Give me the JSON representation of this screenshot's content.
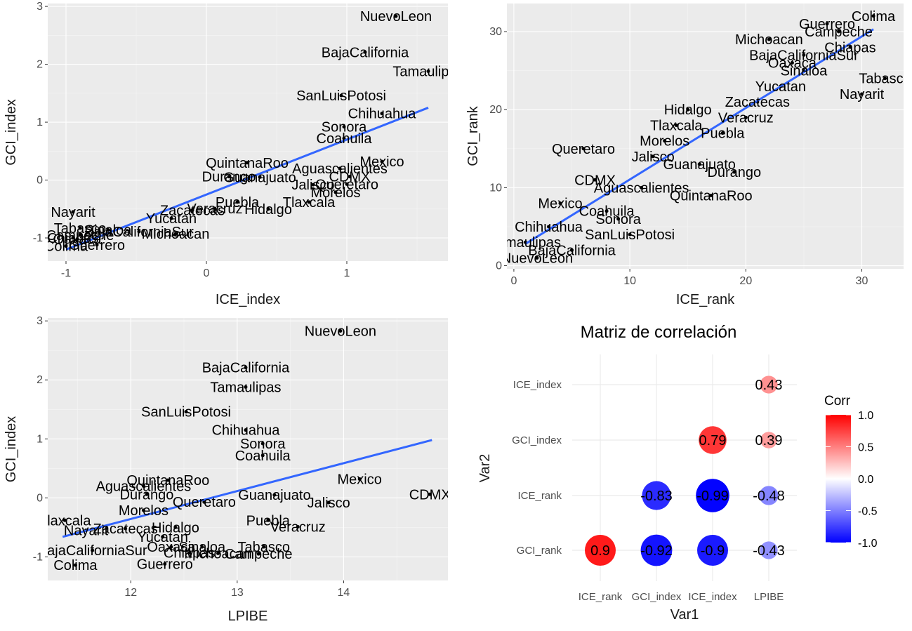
{
  "chart_data": [
    {
      "type": "scatter",
      "xlabel": "ICE_index",
      "ylabel": "GCI_index",
      "xlim": [
        -1.13,
        1.72
      ],
      "ylim": [
        -1.4,
        3.05
      ],
      "xticks": [
        -1,
        0,
        1
      ],
      "yticks": [
        -1,
        0,
        1,
        2,
        3
      ],
      "fit": {
        "x": [
          -1.0,
          1.58
        ],
        "y": [
          -1.2,
          1.25
        ]
      },
      "points": [
        {
          "label": "NuevoLeon",
          "x": 1.35,
          "y": 2.83
        },
        {
          "label": "BajaCalifornia",
          "x": 1.13,
          "y": 2.21
        },
        {
          "label": "Tamaulipas",
          "x": 1.58,
          "y": 1.88
        },
        {
          "label": "SanLuisPotosi",
          "x": 0.96,
          "y": 1.46
        },
        {
          "label": "Chihuahua",
          "x": 1.25,
          "y": 1.15
        },
        {
          "label": "Sonora",
          "x": 0.98,
          "y": 0.92
        },
        {
          "label": "Coahuila",
          "x": 0.98,
          "y": 0.72
        },
        {
          "label": "Mexico",
          "x": 1.25,
          "y": 0.32
        },
        {
          "label": "Aguascalientes",
          "x": 0.95,
          "y": 0.2
        },
        {
          "label": "CDMX",
          "x": 1.02,
          "y": 0.06
        },
        {
          "label": "Jalisco",
          "x": 0.76,
          "y": -0.08
        },
        {
          "label": "Queretaro",
          "x": 1.0,
          "y": -0.07
        },
        {
          "label": "Morelos",
          "x": 0.92,
          "y": -0.21
        },
        {
          "label": "QuintanaRoo",
          "x": 0.29,
          "y": 0.3
        },
        {
          "label": "Durango",
          "x": 0.16,
          "y": 0.06
        },
        {
          "label": "Guanajuato",
          "x": 0.38,
          "y": 0.05
        },
        {
          "label": "Tlaxcala",
          "x": 0.73,
          "y": -0.38
        },
        {
          "label": "Puebla",
          "x": 0.22,
          "y": -0.38
        },
        {
          "label": "Hidalgo",
          "x": 0.44,
          "y": -0.5
        },
        {
          "label": "Zacatecas",
          "x": -0.1,
          "y": -0.52
        },
        {
          "label": "Veracruz",
          "x": 0.06,
          "y": -0.49
        },
        {
          "label": "Yucatan",
          "x": -0.25,
          "y": -0.66
        },
        {
          "label": "Nayarit",
          "x": -0.95,
          "y": -0.55
        },
        {
          "label": "Tabasco",
          "x": -0.9,
          "y": -0.83
        },
        {
          "label": "Sinaloa",
          "x": -0.7,
          "y": -0.86
        },
        {
          "label": "BajaCaliforniaSur",
          "x": -0.48,
          "y": -0.89
        },
        {
          "label": "Michoacan",
          "x": -0.22,
          "y": -0.93
        },
        {
          "label": "Campeche",
          "x": -0.9,
          "y": -0.95
        },
        {
          "label": "Chiapas",
          "x": -0.95,
          "y": -1.0
        },
        {
          "label": "Oaxaca",
          "x": -0.92,
          "y": -1.02
        },
        {
          "label": "Colima",
          "x": -1.0,
          "y": -1.14
        },
        {
          "label": "Guerrero",
          "x": -0.78,
          "y": -1.12
        }
      ]
    },
    {
      "type": "scatter",
      "xlabel": "ICE_rank",
      "ylabel": "GCI_rank",
      "xlim": [
        -0.6,
        33.6
      ],
      "ylim": [
        -0.4,
        33.6
      ],
      "xticks": [
        0,
        10,
        20,
        30
      ],
      "yticks": [
        0,
        10,
        20,
        30
      ],
      "fit": {
        "x": [
          1,
          31
        ],
        "y": [
          2.8,
          30.3
        ]
      },
      "points": [
        {
          "label": "Colima",
          "x": 31,
          "y": 32
        },
        {
          "label": "Guerrero",
          "x": 27,
          "y": 31
        },
        {
          "label": "Campeche",
          "x": 28,
          "y": 30
        },
        {
          "label": "Michoacan",
          "x": 22,
          "y": 29
        },
        {
          "label": "Chiapas",
          "x": 29,
          "y": 28
        },
        {
          "label": "BajaCaliforniaSur",
          "x": 25,
          "y": 27
        },
        {
          "label": "Oaxaca",
          "x": 24,
          "y": 26
        },
        {
          "label": "Sinaloa",
          "x": 25,
          "y": 25
        },
        {
          "label": "Tabasco",
          "x": 32,
          "y": 24
        },
        {
          "label": "Yucatan",
          "x": 23,
          "y": 23
        },
        {
          "label": "Nayarit",
          "x": 30,
          "y": 22
        },
        {
          "label": "Zacatecas",
          "x": 21,
          "y": 21
        },
        {
          "label": "Hidalgo",
          "x": 15,
          "y": 20
        },
        {
          "label": "Veracruz",
          "x": 20,
          "y": 19
        },
        {
          "label": "Tlaxcala",
          "x": 14,
          "y": 18
        },
        {
          "label": "Puebla",
          "x": 18,
          "y": 17
        },
        {
          "label": "Morelos",
          "x": 13,
          "y": 16
        },
        {
          "label": "Queretaro",
          "x": 6,
          "y": 15
        },
        {
          "label": "Jalisco",
          "x": 12,
          "y": 14
        },
        {
          "label": "Guanajuato",
          "x": 16,
          "y": 13
        },
        {
          "label": "Durango",
          "x": 19,
          "y": 12
        },
        {
          "label": "CDMX",
          "x": 7,
          "y": 11
        },
        {
          "label": "Aguascalientes",
          "x": 11,
          "y": 10
        },
        {
          "label": "QuintanaRoo",
          "x": 17,
          "y": 9
        },
        {
          "label": "Mexico",
          "x": 4,
          "y": 8
        },
        {
          "label": "Coahuila",
          "x": 8,
          "y": 7
        },
        {
          "label": "Sonora",
          "x": 9,
          "y": 6
        },
        {
          "label": "Chihuahua",
          "x": 3,
          "y": 5
        },
        {
          "label": "SanLuisPotosi",
          "x": 10,
          "y": 4
        },
        {
          "label": "Tamaulipas",
          "x": 1,
          "y": 3
        },
        {
          "label": "BajaCalifornia",
          "x": 5,
          "y": 2
        },
        {
          "label": "NuevoLeon",
          "x": 2,
          "y": 1
        }
      ]
    },
    {
      "type": "scatter",
      "xlabel": "LPIBE",
      "ylabel": "GCI_index",
      "xlim": [
        11.22,
        14.98
      ],
      "ylim": [
        -1.4,
        3.05
      ],
      "xticks": [
        12,
        13,
        14
      ],
      "yticks": [
        -1,
        0,
        1,
        2,
        3
      ],
      "fit": {
        "x": [
          11.36,
          14.83
        ],
        "y": [
          -0.66,
          0.98
        ]
      },
      "points": [
        {
          "label": "NuevoLeon",
          "x": 13.97,
          "y": 2.83
        },
        {
          "label": "BajaCalifornia",
          "x": 13.08,
          "y": 2.21
        },
        {
          "label": "Tamaulipas",
          "x": 13.08,
          "y": 1.88
        },
        {
          "label": "SanLuisPotosi",
          "x": 12.52,
          "y": 1.46
        },
        {
          "label": "Chihuahua",
          "x": 13.08,
          "y": 1.15
        },
        {
          "label": "Sonora",
          "x": 13.24,
          "y": 0.92
        },
        {
          "label": "Coahuila",
          "x": 13.24,
          "y": 0.72
        },
        {
          "label": "Mexico",
          "x": 14.15,
          "y": 0.32
        },
        {
          "label": "QuintanaRoo",
          "x": 12.35,
          "y": 0.3
        },
        {
          "label": "Aguascalientes",
          "x": 12.12,
          "y": 0.2
        },
        {
          "label": "CDMX",
          "x": 14.81,
          "y": 0.06
        },
        {
          "label": "Durango",
          "x": 12.15,
          "y": 0.06
        },
        {
          "label": "Guanajuato",
          "x": 13.35,
          "y": 0.05
        },
        {
          "label": "Jalisco",
          "x": 13.86,
          "y": -0.08
        },
        {
          "label": "Queretaro",
          "x": 12.69,
          "y": -0.07
        },
        {
          "label": "Morelos",
          "x": 12.12,
          "y": -0.21
        },
        {
          "label": "Tlaxcala",
          "x": 11.38,
          "y": -0.38
        },
        {
          "label": "Puebla",
          "x": 13.29,
          "y": -0.38
        },
        {
          "label": "Hidalgo",
          "x": 12.42,
          "y": -0.5
        },
        {
          "label": "Zacatecas",
          "x": 11.95,
          "y": -0.52
        },
        {
          "label": "Veracruz",
          "x": 13.57,
          "y": -0.49
        },
        {
          "label": "Nayarit",
          "x": 11.58,
          "y": -0.55
        },
        {
          "label": "Yucatan",
          "x": 12.3,
          "y": -0.66
        },
        {
          "label": "Oaxaca",
          "x": 12.38,
          "y": -0.83
        },
        {
          "label": "Sinaloa",
          "x": 12.67,
          "y": -0.83
        },
        {
          "label": "Tabasco",
          "x": 13.25,
          "y": -0.83
        },
        {
          "label": "BajaCaliforniaSur",
          "x": 11.64,
          "y": -0.89
        },
        {
          "label": "Chiapas",
          "x": 12.55,
          "y": -0.93
        },
        {
          "label": "Michoacan",
          "x": 12.82,
          "y": -0.94
        },
        {
          "label": "Campeche",
          "x": 13.2,
          "y": -0.95
        },
        {
          "label": "Colima",
          "x": 11.48,
          "y": -1.14
        },
        {
          "label": "Guerrero",
          "x": 12.32,
          "y": -1.12
        }
      ]
    },
    {
      "type": "heatmap",
      "title": "Matriz de correlación",
      "xlabel": "Var1",
      "ylabel": "Var2",
      "x_categories": [
        "ICE_rank",
        "GCI_index",
        "ICE_index",
        "LPIBE"
      ],
      "y_categories": [
        "GCI_rank",
        "ICE_rank",
        "GCI_index",
        "ICE_index"
      ],
      "legend_title": "Corr",
      "legend_ticks": [
        "1.0",
        "0.5",
        "0.0",
        "-0.5",
        "-1.0"
      ],
      "color_low": "#0000ff",
      "color_mid": "#ffffff",
      "color_high": "#ff0000",
      "cells": [
        {
          "x": "ICE_rank",
          "y": "GCI_rank",
          "value": 0.9,
          "text": "0.9"
        },
        {
          "x": "GCI_index",
          "y": "GCI_rank",
          "value": -0.92,
          "text": "-0.92"
        },
        {
          "x": "ICE_index",
          "y": "GCI_rank",
          "value": -0.9,
          "text": "-0.9"
        },
        {
          "x": "LPIBE",
          "y": "GCI_rank",
          "value": -0.43,
          "text": "-0.43"
        },
        {
          "x": "GCI_index",
          "y": "ICE_rank",
          "value": -0.83,
          "text": "-0.83"
        },
        {
          "x": "ICE_index",
          "y": "ICE_rank",
          "value": -0.99,
          "text": "-0.99"
        },
        {
          "x": "LPIBE",
          "y": "ICE_rank",
          "value": -0.48,
          "text": "-0.48"
        },
        {
          "x": "ICE_index",
          "y": "GCI_index",
          "value": 0.79,
          "text": "0.79"
        },
        {
          "x": "LPIBE",
          "y": "GCI_index",
          "value": 0.39,
          "text": "0.39"
        },
        {
          "x": "LPIBE",
          "y": "ICE_index",
          "value": 0.43,
          "text": "0.43"
        }
      ]
    }
  ]
}
